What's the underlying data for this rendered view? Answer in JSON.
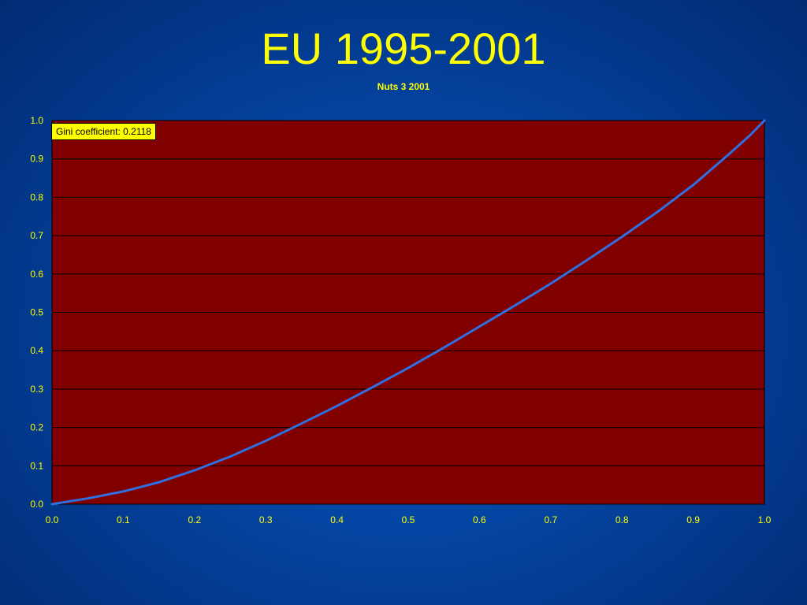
{
  "title": "EU 1995-2001",
  "subtitle": "Nuts 3 2001",
  "annotation": "Gini coefficient: 0.2118",
  "colors": {
    "title": "#ffff00",
    "plot_background": "#800000",
    "curve": "#2f6fe0",
    "grid": "#000000",
    "tick_text": "#ffff00",
    "annotation_background": "#ffff00"
  },
  "chart_data": {
    "type": "line",
    "title": "EU 1995-2001",
    "subtitle": "Nuts 3 2001",
    "xlabel": "",
    "ylabel": "",
    "xlim": [
      0,
      1
    ],
    "ylim": [
      0,
      1
    ],
    "x_ticks": [
      "0.0",
      "0.1",
      "0.2",
      "0.3",
      "0.4",
      "0.5",
      "0.6",
      "0.7",
      "0.8",
      "0.9",
      "1.0"
    ],
    "y_ticks": [
      "0.0",
      "0.1",
      "0.2",
      "0.3",
      "0.4",
      "0.5",
      "0.6",
      "0.7",
      "0.8",
      "0.9",
      "1.0"
    ],
    "grid": "horizontal",
    "legend": "none",
    "annotations": [
      "Gini coefficient: 0.2118"
    ],
    "series": [
      {
        "x": [
          0.0,
          0.05,
          0.1,
          0.15,
          0.2,
          0.25,
          0.3,
          0.35,
          0.4,
          0.45,
          0.5,
          0.55,
          0.6,
          0.65,
          0.7,
          0.75,
          0.8,
          0.85,
          0.9,
          0.95,
          0.98,
          1.0
        ],
        "values": [
          0.0,
          0.015,
          0.033,
          0.057,
          0.088,
          0.124,
          0.165,
          0.21,
          0.256,
          0.305,
          0.355,
          0.408,
          0.463,
          0.518,
          0.575,
          0.635,
          0.697,
          0.762,
          0.832,
          0.912,
          0.962,
          1.0
        ]
      }
    ]
  }
}
